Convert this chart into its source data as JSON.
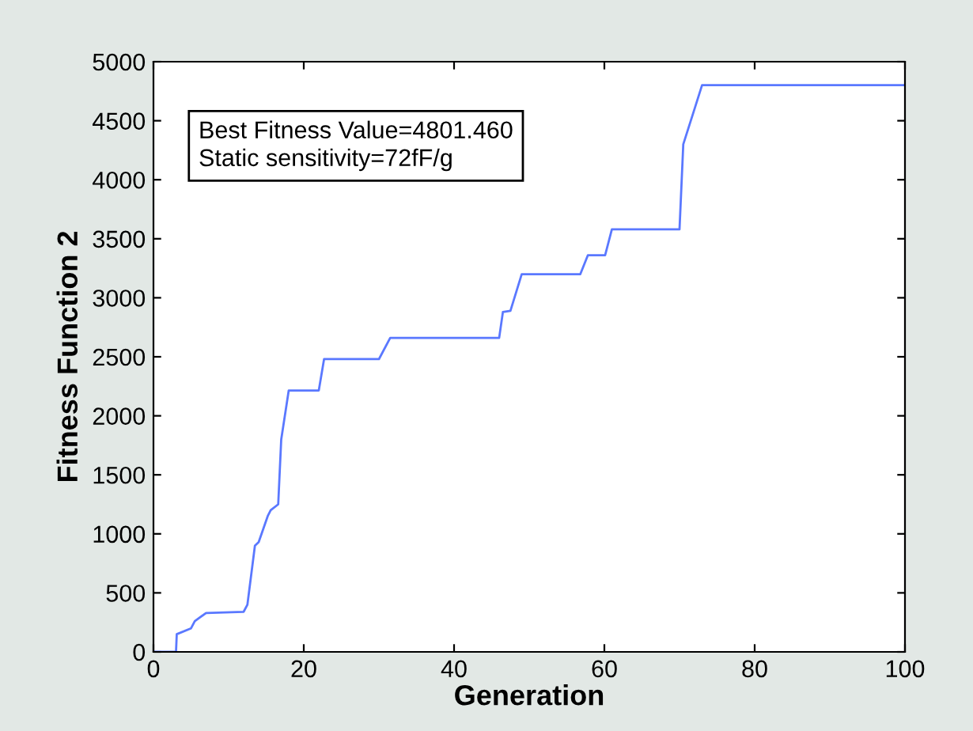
{
  "chart_data": {
    "type": "line",
    "xlabel": "Generation",
    "ylabel": "Fitness Function 2",
    "annotations": [
      "Best Fitness Value=4801.460\nStatic sensitivity=72fF/g"
    ],
    "xlim": [
      0,
      100
    ],
    "xticks": [
      0,
      20,
      40,
      60,
      80,
      100
    ],
    "ylim": [
      0,
      5000
    ],
    "yticks": [
      0,
      500,
      1000,
      1500,
      2000,
      2500,
      3000,
      3500,
      4000,
      4500,
      5000
    ],
    "grid": false,
    "legend": false,
    "series": [
      {
        "color": "#5a78ff",
        "x": [
          0,
          3,
          3.1,
          5,
          5.5,
          7,
          12,
          12.5,
          13.5,
          14,
          15.2,
          15.6,
          16.6,
          17,
          18,
          22,
          22.7,
          30,
          31.5,
          46,
          46.5,
          47.5,
          49,
          56.8,
          57.8,
          60.1,
          61,
          70,
          70.5,
          72,
          73,
          100
        ],
        "values": [
          0,
          0,
          150,
          200,
          260,
          330,
          340,
          400,
          900,
          930,
          1150,
          1200,
          1250,
          1800,
          2215,
          2215,
          2480,
          2480,
          2660,
          2660,
          2880,
          2890,
          3200,
          3200,
          3360,
          3360,
          3580,
          3580,
          4300,
          4600,
          4801,
          4801
        ]
      }
    ]
  }
}
